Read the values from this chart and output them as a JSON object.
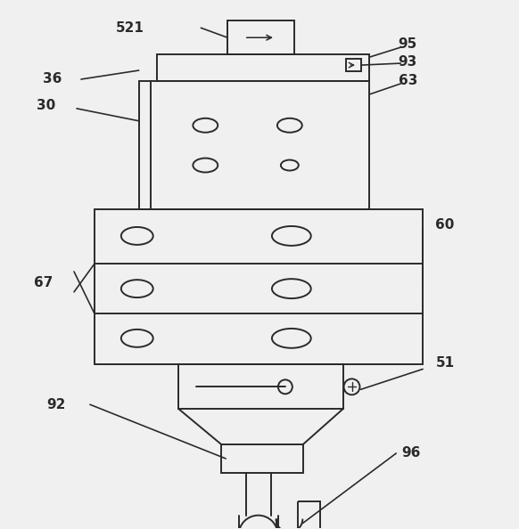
{
  "bg_color": "#f0f0f0",
  "line_color": "#2a2a2a",
  "lw": 1.4,
  "fig_w": 5.82,
  "fig_h": 5.94,
  "dpi": 100
}
